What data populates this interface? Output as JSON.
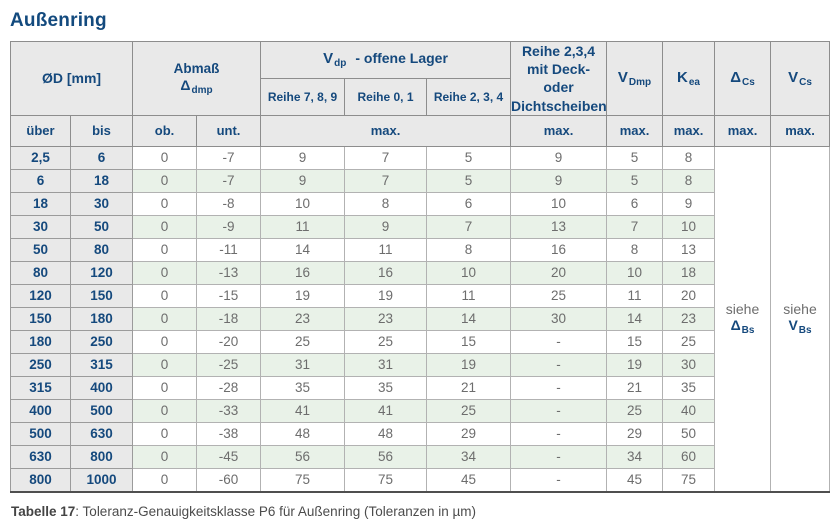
{
  "title": "Außenring",
  "table": {
    "header": {
      "od": "ØD  [mm]",
      "abmass": "Abmaß",
      "abmass_sym": "Δ",
      "abmass_sub": "dmp",
      "vdp_sym": "V",
      "vdp_sub": "dp",
      "vdp_rest": "-  offene Lager",
      "reihe789": "Reihe 7, 8, 9",
      "reihe01": "Reihe 0, 1",
      "reihe234": "Reihe 2, 3, 4",
      "deck_line1": "Reihe 2,3,4",
      "deck_line2": "mit Deck- oder",
      "deck_line3": "Dichtscheiben",
      "vdmp_sym": "V",
      "vdmp_sub": "Dmp",
      "kea_sym": "K",
      "kea_sub": "ea",
      "dcs_sym": "Δ",
      "dcs_sub": "Cs",
      "vcs_sym": "V",
      "vcs_sub": "Cs",
      "ueber": "über",
      "bis": "bis",
      "ob": "ob.",
      "unt": "unt.",
      "max": "max."
    },
    "see_dcs": {
      "word": "siehe",
      "sym": "Δ",
      "sub": "Bs"
    },
    "see_vcs": {
      "word": "siehe",
      "sym": "V",
      "sub": "Bs"
    },
    "rows": [
      [
        "2,5",
        "6",
        "0",
        "-7",
        "9",
        "7",
        "5",
        "9",
        "5",
        "8"
      ],
      [
        "6",
        "18",
        "0",
        "-7",
        "9",
        "7",
        "5",
        "9",
        "5",
        "8"
      ],
      [
        "18",
        "30",
        "0",
        "-8",
        "10",
        "8",
        "6",
        "10",
        "6",
        "9"
      ],
      [
        "30",
        "50",
        "0",
        "-9",
        "11",
        "9",
        "7",
        "13",
        "7",
        "10"
      ],
      [
        "50",
        "80",
        "0",
        "-11",
        "14",
        "11",
        "8",
        "16",
        "8",
        "13"
      ],
      [
        "80",
        "120",
        "0",
        "-13",
        "16",
        "16",
        "10",
        "20",
        "10",
        "18"
      ],
      [
        "120",
        "150",
        "0",
        "-15",
        "19",
        "19",
        "11",
        "25",
        "11",
        "20"
      ],
      [
        "150",
        "180",
        "0",
        "-18",
        "23",
        "23",
        "14",
        "30",
        "14",
        "23"
      ],
      [
        "180",
        "250",
        "0",
        "-20",
        "25",
        "25",
        "15",
        "-",
        "15",
        "25"
      ],
      [
        "250",
        "315",
        "0",
        "-25",
        "31",
        "31",
        "19",
        "-",
        "19",
        "30"
      ],
      [
        "315",
        "400",
        "0",
        "-28",
        "35",
        "35",
        "21",
        "-",
        "21",
        "35"
      ],
      [
        "400",
        "500",
        "0",
        "-33",
        "41",
        "41",
        "25",
        "-",
        "25",
        "40"
      ],
      [
        "500",
        "630",
        "0",
        "-38",
        "48",
        "48",
        "29",
        "-",
        "29",
        "50"
      ],
      [
        "630",
        "800",
        "0",
        "-45",
        "56",
        "56",
        "34",
        "-",
        "34",
        "60"
      ],
      [
        "800",
        "1000",
        "0",
        "-60",
        "75",
        "75",
        "45",
        "-",
        "45",
        "75"
      ]
    ]
  },
  "caption": {
    "label": "Tabelle 17",
    "text": ": Toleranz-Genauigkeitsklasse P6 für Außenring (Toleranzen in µm)"
  },
  "colors": {
    "heading_blue": "#134a7e",
    "header_bg_gray": "#e9e9e9",
    "stripe_green": "#e9f2e8",
    "value_gray": "#6d6d6d"
  }
}
